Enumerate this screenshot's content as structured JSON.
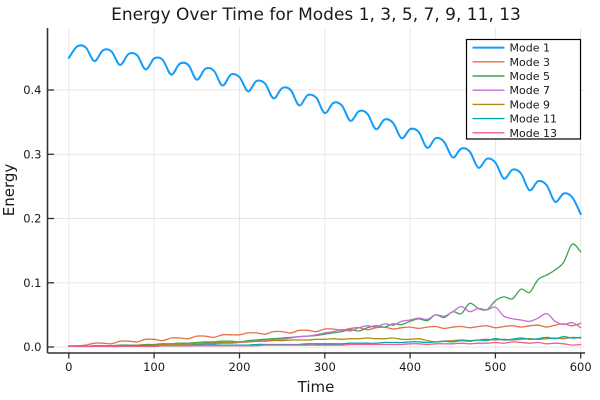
{
  "figure": {
    "background": "#ffffff",
    "text_color": "#17191b",
    "grid_color": "#e4e4e6",
    "spine_color": "#2f3337",
    "legend_border_color": "#000000",
    "legend_background": "#ffffff"
  },
  "chart_data": {
    "type": "line",
    "title": "Energy Over Time for Modes 1, 3, 5, 7, 9, 11, 13",
    "xlabel": "Time",
    "ylabel": "Energy",
    "grid": true,
    "legend_position": "top-right",
    "xlim": [
      -25,
      605
    ],
    "ylim": [
      -0.0093,
      0.4965
    ],
    "xticks": {
      "values": [
        0,
        100,
        200,
        300,
        400,
        500,
        600
      ],
      "labels": [
        "0",
        "100",
        "200",
        "300",
        "400",
        "500",
        "600"
      ]
    },
    "yticks": {
      "values": [
        0,
        0.1,
        0.2,
        0.3,
        0.4
      ],
      "labels": [
        "0.0",
        "0.1",
        "0.2",
        "0.3",
        "0.4"
      ]
    },
    "x": [
      0,
      10,
      20,
      30,
      40,
      50,
      60,
      70,
      80,
      90,
      100,
      110,
      120,
      130,
      140,
      150,
      160,
      170,
      180,
      190,
      200,
      210,
      220,
      230,
      240,
      250,
      260,
      270,
      280,
      290,
      300,
      310,
      320,
      330,
      340,
      350,
      360,
      370,
      380,
      390,
      400,
      410,
      420,
      430,
      440,
      450,
      460,
      470,
      480,
      490,
      500,
      510,
      520,
      530,
      540,
      550,
      560,
      570,
      580,
      590,
      600
    ],
    "series": [
      {
        "name": "Mode 1",
        "color": "#149cf8",
        "width": 2,
        "values": [
          0.45,
          0.468,
          0.466,
          0.445,
          0.462,
          0.46,
          0.439,
          0.456,
          0.454,
          0.432,
          0.449,
          0.447,
          0.424,
          0.441,
          0.439,
          0.416,
          0.433,
          0.43,
          0.407,
          0.424,
          0.42,
          0.398,
          0.414,
          0.41,
          0.387,
          0.403,
          0.4,
          0.376,
          0.392,
          0.388,
          0.364,
          0.38,
          0.376,
          0.352,
          0.367,
          0.363,
          0.339,
          0.354,
          0.349,
          0.325,
          0.339,
          0.335,
          0.31,
          0.325,
          0.319,
          0.295,
          0.309,
          0.304,
          0.279,
          0.293,
          0.287,
          0.262,
          0.276,
          0.27,
          0.244,
          0.258,
          0.252,
          0.226,
          0.239,
          0.233,
          0.207
        ]
      },
      {
        "name": "Mode 3",
        "color": "#e2714a",
        "width": 1.3,
        "values": [
          0.002,
          0.002,
          0.003,
          0.006,
          0.006,
          0.005,
          0.009,
          0.009,
          0.008,
          0.012,
          0.012,
          0.01,
          0.014,
          0.014,
          0.013,
          0.017,
          0.017,
          0.015,
          0.019,
          0.019,
          0.019,
          0.022,
          0.022,
          0.02,
          0.024,
          0.024,
          0.022,
          0.026,
          0.026,
          0.024,
          0.028,
          0.028,
          0.026,
          0.029,
          0.03,
          0.027,
          0.03,
          0.031,
          0.028,
          0.03,
          0.031,
          0.029,
          0.031,
          0.032,
          0.029,
          0.031,
          0.032,
          0.03,
          0.032,
          0.033,
          0.03,
          0.032,
          0.033,
          0.031,
          0.033,
          0.034,
          0.031,
          0.034,
          0.036,
          0.033,
          0.037
        ]
      },
      {
        "name": "Mode 5",
        "color": "#3da44e",
        "width": 1.3,
        "values": [
          0.001,
          0.001,
          0.001,
          0.002,
          0.002,
          0.002,
          0.003,
          0.003,
          0.003,
          0.004,
          0.004,
          0.005,
          0.005,
          0.006,
          0.006,
          0.007,
          0.008,
          0.008,
          0.009,
          0.009,
          0.008,
          0.01,
          0.011,
          0.012,
          0.013,
          0.014,
          0.015,
          0.016,
          0.017,
          0.018,
          0.02,
          0.022,
          0.024,
          0.027,
          0.025,
          0.03,
          0.033,
          0.031,
          0.036,
          0.035,
          0.04,
          0.044,
          0.041,
          0.05,
          0.046,
          0.055,
          0.052,
          0.068,
          0.06,
          0.058,
          0.072,
          0.078,
          0.075,
          0.09,
          0.085,
          0.105,
          0.112,
          0.12,
          0.132,
          0.16,
          0.148
        ]
      },
      {
        "name": "Mode 7",
        "color": "#c46fd3",
        "width": 1.3,
        "values": [
          0.001,
          0.001,
          0.001,
          0.001,
          0.001,
          0.001,
          0.002,
          0.002,
          0.002,
          0.002,
          0.002,
          0.003,
          0.003,
          0.003,
          0.004,
          0.004,
          0.005,
          0.005,
          0.006,
          0.006,
          0.007,
          0.008,
          0.009,
          0.01,
          0.011,
          0.012,
          0.014,
          0.016,
          0.017,
          0.019,
          0.022,
          0.024,
          0.027,
          0.025,
          0.03,
          0.033,
          0.031,
          0.036,
          0.034,
          0.04,
          0.042,
          0.045,
          0.043,
          0.05,
          0.048,
          0.055,
          0.063,
          0.055,
          0.06,
          0.058,
          0.062,
          0.048,
          0.044,
          0.042,
          0.04,
          0.045,
          0.052,
          0.04,
          0.035,
          0.038,
          0.03
        ]
      },
      {
        "name": "Mode 9",
        "color": "#ad8c17",
        "width": 1.3,
        "values": [
          0.001,
          0.001,
          0.001,
          0.001,
          0.002,
          0.002,
          0.002,
          0.002,
          0.003,
          0.003,
          0.003,
          0.004,
          0.004,
          0.004,
          0.005,
          0.005,
          0.006,
          0.006,
          0.007,
          0.007,
          0.008,
          0.008,
          0.009,
          0.009,
          0.01,
          0.01,
          0.011,
          0.011,
          0.011,
          0.012,
          0.012,
          0.013,
          0.012,
          0.013,
          0.013,
          0.014,
          0.013,
          0.013,
          0.014,
          0.012,
          0.012,
          0.013,
          0.01,
          0.008,
          0.009,
          0.01,
          0.011,
          0.01,
          0.011,
          0.012,
          0.011,
          0.012,
          0.011,
          0.012,
          0.013,
          0.012,
          0.013,
          0.014,
          0.013,
          0.015,
          0.014
        ]
      },
      {
        "name": "Mode 11",
        "color": "#00a9ad",
        "width": 1.3,
        "values": [
          0.001,
          0.001,
          0.001,
          0.001,
          0.001,
          0.001,
          0.001,
          0.002,
          0.002,
          0.002,
          0.002,
          0.002,
          0.002,
          0.002,
          0.002,
          0.003,
          0.003,
          0.003,
          0.003,
          0.003,
          0.003,
          0.003,
          0.004,
          0.004,
          0.004,
          0.004,
          0.004,
          0.004,
          0.005,
          0.005,
          0.005,
          0.005,
          0.005,
          0.006,
          0.006,
          0.006,
          0.006,
          0.007,
          0.007,
          0.007,
          0.008,
          0.008,
          0.007,
          0.008,
          0.009,
          0.008,
          0.01,
          0.009,
          0.011,
          0.01,
          0.013,
          0.011,
          0.012,
          0.014,
          0.012,
          0.013,
          0.015,
          0.013,
          0.016,
          0.014,
          0.015
        ]
      },
      {
        "name": "Mode 13",
        "color": "#ee5d93",
        "width": 1.3,
        "values": [
          0.001,
          0.001,
          0.001,
          0.001,
          0.001,
          0.001,
          0.001,
          0.001,
          0.001,
          0.001,
          0.001,
          0.002,
          0.002,
          0.002,
          0.002,
          0.002,
          0.002,
          0.002,
          0.002,
          0.002,
          0.002,
          0.002,
          0.002,
          0.003,
          0.003,
          0.003,
          0.003,
          0.003,
          0.003,
          0.003,
          0.003,
          0.003,
          0.003,
          0.004,
          0.004,
          0.004,
          0.004,
          0.004,
          0.004,
          0.004,
          0.005,
          0.005,
          0.004,
          0.005,
          0.005,
          0.005,
          0.006,
          0.005,
          0.006,
          0.006,
          0.007,
          0.006,
          0.008,
          0.007,
          0.006,
          0.007,
          0.005,
          0.006,
          0.005,
          0.003,
          0.004
        ]
      }
    ]
  }
}
